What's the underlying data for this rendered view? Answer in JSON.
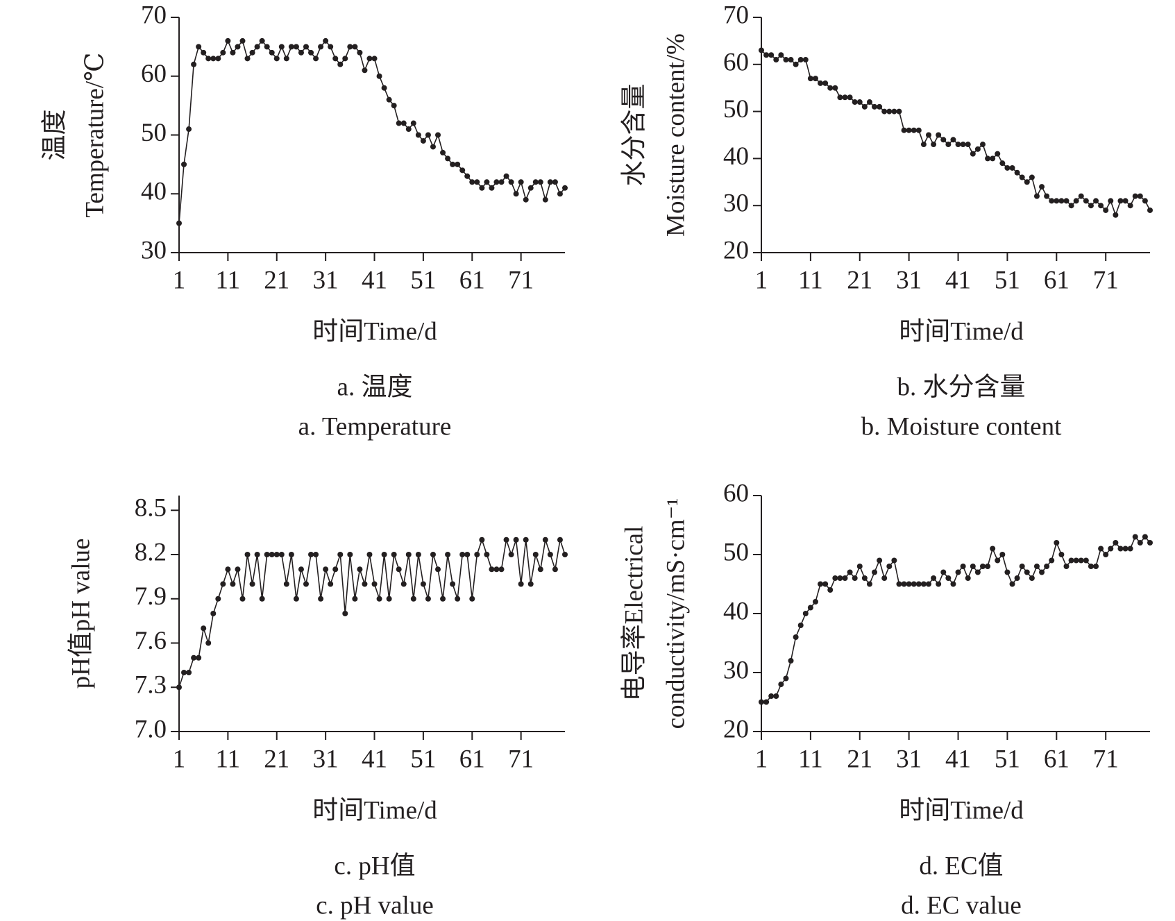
{
  "chart_data": [
    {
      "type": "line",
      "ylabel": [
        "温度",
        "Temperature/℃"
      ],
      "xlabel": "时间Time/d",
      "caption": [
        "a. 温度",
        "a. Temperature"
      ],
      "color": "#231f20",
      "xlim": [
        1,
        80
      ],
      "xticks": [
        1,
        11,
        21,
        31,
        41,
        51,
        61,
        71
      ],
      "ylim": [
        30,
        70
      ],
      "yticks": [
        30,
        40,
        50,
        60,
        70
      ],
      "x": [
        1,
        2,
        3,
        4,
        5,
        6,
        7,
        8,
        9,
        10,
        11,
        12,
        13,
        14,
        15,
        16,
        17,
        18,
        19,
        20,
        21,
        22,
        23,
        24,
        25,
        26,
        27,
        28,
        29,
        30,
        31,
        32,
        33,
        34,
        35,
        36,
        37,
        38,
        39,
        40,
        41,
        42,
        43,
        44,
        45,
        46,
        47,
        48,
        49,
        50,
        51,
        52,
        53,
        54,
        55,
        56,
        57,
        58,
        59,
        60,
        61,
        62,
        63,
        64,
        65,
        66,
        67,
        68,
        69,
        70,
        71,
        72,
        73,
        74,
        75,
        76,
        77,
        78,
        79,
        80
      ],
      "series": [
        {
          "values": [
            35,
            45,
            51,
            62,
            65,
            64,
            63,
            63,
            63,
            64,
            66,
            64,
            65,
            66,
            63,
            64,
            65,
            66,
            65,
            64,
            63,
            65,
            63,
            65,
            65,
            64,
            65,
            64,
            63,
            65,
            66,
            65,
            63,
            62,
            63,
            65,
            65,
            64,
            61,
            63,
            63,
            60,
            58,
            56,
            55,
            52,
            52,
            51,
            52,
            50,
            49,
            50,
            48,
            50,
            47,
            46,
            45,
            45,
            44,
            43,
            42,
            42,
            41,
            42,
            41,
            42,
            42,
            43,
            42,
            40,
            42,
            39,
            41,
            42,
            42,
            39,
            42,
            42,
            40,
            41
          ]
        }
      ]
    },
    {
      "type": "line",
      "ylabel": [
        "水分含量",
        "Moisture content/%"
      ],
      "xlabel": "时间Time/d",
      "caption": [
        "b. 水分含量",
        "b. Moisture content"
      ],
      "color": "#231f20",
      "xlim": [
        1,
        80
      ],
      "xticks": [
        1,
        11,
        21,
        31,
        41,
        51,
        61,
        71
      ],
      "ylim": [
        20,
        70
      ],
      "yticks": [
        20,
        30,
        40,
        50,
        60,
        70
      ],
      "x": [
        1,
        2,
        3,
        4,
        5,
        6,
        7,
        8,
        9,
        10,
        11,
        12,
        13,
        14,
        15,
        16,
        17,
        18,
        19,
        20,
        21,
        22,
        23,
        24,
        25,
        26,
        27,
        28,
        29,
        30,
        31,
        32,
        33,
        34,
        35,
        36,
        37,
        38,
        39,
        40,
        41,
        42,
        43,
        44,
        45,
        46,
        47,
        48,
        49,
        50,
        51,
        52,
        53,
        54,
        55,
        56,
        57,
        58,
        59,
        60,
        61,
        62,
        63,
        64,
        65,
        66,
        67,
        68,
        69,
        70,
        71,
        72,
        73,
        74,
        75,
        76,
        77,
        78,
        79,
        80
      ],
      "series": [
        {
          "values": [
            63,
            62,
            62,
            61,
            62,
            61,
            61,
            60,
            61,
            61,
            57,
            57,
            56,
            56,
            55,
            55,
            53,
            53,
            53,
            52,
            52,
            51,
            52,
            51,
            51,
            50,
            50,
            50,
            50,
            46,
            46,
            46,
            46,
            43,
            45,
            43,
            45,
            44,
            43,
            44,
            43,
            43,
            43,
            41,
            42,
            43,
            40,
            40,
            41,
            39,
            38,
            38,
            37,
            36,
            35,
            36,
            32,
            34,
            32,
            31,
            31,
            31,
            31,
            30,
            31,
            32,
            31,
            30,
            31,
            30,
            29,
            31,
            28,
            31,
            31,
            30,
            32,
            32,
            31,
            29
          ]
        }
      ]
    },
    {
      "type": "line",
      "ylabel": [
        "pH值pH value"
      ],
      "xlabel": "时间Time/d",
      "caption": [
        "c. pH值",
        "c. pH value"
      ],
      "color": "#231f20",
      "xlim": [
        1,
        80
      ],
      "xticks": [
        1,
        11,
        21,
        31,
        41,
        51,
        61,
        71
      ],
      "ylim": [
        7,
        8.6
      ],
      "yticks": [
        {
          "value": 7,
          "label": "7.0"
        },
        7.3,
        7.6,
        7.9,
        8.2,
        8.5
      ],
      "x": [
        1,
        2,
        3,
        4,
        5,
        6,
        7,
        8,
        9,
        10,
        11,
        12,
        13,
        14,
        15,
        16,
        17,
        18,
        19,
        20,
        21,
        22,
        23,
        24,
        25,
        26,
        27,
        28,
        29,
        30,
        31,
        32,
        33,
        34,
        35,
        36,
        37,
        38,
        39,
        40,
        41,
        42,
        43,
        44,
        45,
        46,
        47,
        48,
        49,
        50,
        51,
        52,
        53,
        54,
        55,
        56,
        57,
        58,
        59,
        60,
        61,
        62,
        63,
        64,
        65,
        66,
        67,
        68,
        69,
        70,
        71,
        72,
        73,
        74,
        75,
        76,
        77,
        78,
        79,
        80
      ],
      "series": [
        {
          "values": [
            7.3,
            7.4,
            7.4,
            7.5,
            7.5,
            7.7,
            7.6,
            7.8,
            7.9,
            8.0,
            8.1,
            8.0,
            8.1,
            7.9,
            8.2,
            8.0,
            8.2,
            7.9,
            8.2,
            8.2,
            8.2,
            8.2,
            8.0,
            8.2,
            7.9,
            8.1,
            8.0,
            8.2,
            8.2,
            7.9,
            8.1,
            8.0,
            8.1,
            8.2,
            7.8,
            8.2,
            7.9,
            8.1,
            8.0,
            8.2,
            8.0,
            7.9,
            8.2,
            7.9,
            8.2,
            8.1,
            8.0,
            8.2,
            7.9,
            8.2,
            8.0,
            7.9,
            8.2,
            8.1,
            7.9,
            8.2,
            8.0,
            7.9,
            8.2,
            8.2,
            7.9,
            8.2,
            8.3,
            8.2,
            8.1,
            8.1,
            8.1,
            8.3,
            8.2,
            8.3,
            8.0,
            8.3,
            8.0,
            8.2,
            8.1,
            8.3,
            8.2,
            8.1,
            8.3,
            8.2
          ]
        }
      ]
    },
    {
      "type": "line",
      "ylabel": [
        "电导率Electrical",
        "conductivity/mS·cm⁻¹"
      ],
      "xlabel": "时间Time/d",
      "caption": [
        "d. EC值",
        "d. EC value"
      ],
      "color": "#231f20",
      "xlim": [
        1,
        80
      ],
      "xticks": [
        1,
        11,
        21,
        31,
        41,
        51,
        61,
        71
      ],
      "ylim": [
        20,
        60
      ],
      "yticks": [
        20,
        30,
        40,
        50,
        60
      ],
      "x": [
        1,
        2,
        3,
        4,
        5,
        6,
        7,
        8,
        9,
        10,
        11,
        12,
        13,
        14,
        15,
        16,
        17,
        18,
        19,
        20,
        21,
        22,
        23,
        24,
        25,
        26,
        27,
        28,
        29,
        30,
        31,
        32,
        33,
        34,
        35,
        36,
        37,
        38,
        39,
        40,
        41,
        42,
        43,
        44,
        45,
        46,
        47,
        48,
        49,
        50,
        51,
        52,
        53,
        54,
        55,
        56,
        57,
        58,
        59,
        60,
        61,
        62,
        63,
        64,
        65,
        66,
        67,
        68,
        69,
        70,
        71,
        72,
        73,
        74,
        75,
        76,
        77,
        78,
        79,
        80
      ],
      "series": [
        {
          "values": [
            25,
            25,
            26,
            26,
            28,
            29,
            32,
            36,
            38,
            40,
            41,
            42,
            45,
            45,
            44,
            46,
            46,
            46,
            47,
            46,
            48,
            46,
            45,
            47,
            49,
            46,
            48,
            49,
            45,
            45,
            45,
            45,
            45,
            45,
            45,
            46,
            45,
            47,
            46,
            45,
            47,
            48,
            46,
            48,
            47,
            48,
            48,
            51,
            49,
            50,
            47,
            45,
            46,
            48,
            47,
            46,
            48,
            47,
            48,
            49,
            52,
            50,
            48,
            49,
            49,
            49,
            49,
            48,
            48,
            51,
            50,
            51,
            52,
            51,
            51,
            51,
            53,
            52,
            53,
            52
          ]
        }
      ]
    }
  ]
}
